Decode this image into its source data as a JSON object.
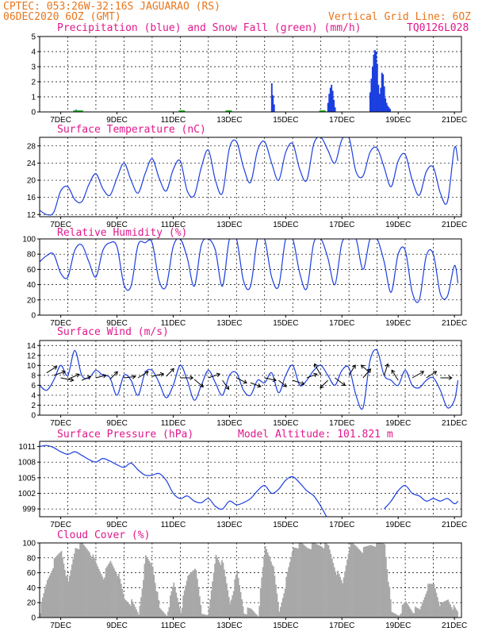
{
  "header": {
    "line1": "CPTEC:   053:26W-32:16S  JAGUARAO (RS)",
    "line2": "06DEC2020 6OZ (GMT)",
    "grid_note": "Vertical Grid Line: 6OZ",
    "model_id": "TQ0126L028"
  },
  "colors": {
    "header": "#e8761c",
    "title": "#e0188c",
    "line": "#1c3fe0",
    "precip": "#1c3fe0",
    "snow": "#22bb22",
    "cloud": "#a8a8a8",
    "wind_arrow": "#000000"
  },
  "x_axis": {
    "tick_labels": [
      "7DEC",
      "9DEC",
      "11DEC",
      "13DEC",
      "15DEC",
      "17DEC",
      "19DEC",
      "21DEC"
    ],
    "tick_hours": [
      18,
      66,
      114,
      162,
      210,
      258,
      306,
      354
    ],
    "gridline_hours": [
      0,
      24,
      48,
      72,
      96,
      120,
      144,
      168,
      192,
      216,
      240,
      264,
      288,
      312,
      336,
      360
    ],
    "range_hours": [
      0,
      360
    ]
  },
  "chart_data": [
    {
      "id": "precipitation",
      "type": "bar",
      "title": "Precipitation (blue) and Snow Fall (green) (mm/h)",
      "ylim": [
        0,
        5
      ],
      "yticks": [
        0,
        1,
        2,
        3,
        4,
        5
      ],
      "grid": true,
      "series": [
        {
          "name": "Precipitation",
          "color": "#1c3fe0",
          "points": [
            [
              30,
              0.1
            ],
            [
              31,
              0.15
            ],
            [
              32,
              0.1
            ],
            [
              33,
              0.05
            ],
            [
              34,
              0.05
            ],
            [
              198,
              1.9
            ],
            [
              199,
              1.1
            ],
            [
              200,
              0.5
            ],
            [
              246,
              0.6
            ],
            [
              247,
              1.2
            ],
            [
              248,
              1.6
            ],
            [
              249,
              1.8
            ],
            [
              250,
              1.4
            ],
            [
              251,
              0.8
            ],
            [
              252,
              0.3
            ],
            [
              282,
              1.3
            ],
            [
              283,
              2.2
            ],
            [
              284,
              3.0
            ],
            [
              285,
              3.8
            ],
            [
              286,
              4.1
            ],
            [
              287,
              4.0
            ],
            [
              288,
              3.2
            ],
            [
              289,
              1.8
            ],
            [
              290,
              1.2
            ],
            [
              291,
              1.6
            ],
            [
              292,
              2.6
            ],
            [
              293,
              2.5
            ],
            [
              294,
              1.7
            ],
            [
              295,
              0.9
            ],
            [
              296,
              0.6
            ],
            [
              297,
              0.4
            ],
            [
              298,
              0.3
            ],
            [
              299,
              0.2
            ]
          ]
        },
        {
          "name": "Snow Fall",
          "color": "#22bb22",
          "points": [
            [
              30,
              0.05
            ],
            [
              33,
              0.05
            ],
            [
              120,
              0.03
            ],
            [
              160,
              0.03
            ],
            [
              240,
              0.03
            ]
          ]
        }
      ]
    },
    {
      "id": "temperature",
      "type": "line",
      "title": "Surface Temperature (nC)",
      "ylim": [
        11.5,
        30
      ],
      "yticks": [
        12,
        16,
        20,
        24,
        28
      ],
      "grid": true,
      "x": [
        0,
        6,
        12,
        18,
        24,
        30,
        36,
        42,
        48,
        54,
        60,
        66,
        72,
        78,
        84,
        90,
        96,
        102,
        108,
        114,
        120,
        126,
        132,
        138,
        144,
        150,
        156,
        162,
        168,
        174,
        180,
        186,
        192,
        198,
        204,
        210,
        216,
        222,
        228,
        234,
        240,
        246,
        252,
        258,
        264,
        270,
        276,
        282,
        288,
        294,
        300,
        306,
        312,
        318,
        324,
        330,
        336,
        342,
        348,
        354,
        357
      ],
      "values": [
        13.0,
        12.0,
        12.5,
        17.5,
        18.5,
        15.5,
        15.0,
        19.0,
        21.5,
        18.0,
        16.5,
        20.5,
        24.0,
        20.0,
        17.0,
        21.5,
        25.0,
        20.5,
        17.5,
        22.5,
        24.5,
        17.5,
        16.5,
        23.0,
        27.0,
        20.0,
        17.0,
        27.5,
        29.0,
        23.0,
        19.5,
        27.0,
        29.0,
        24.0,
        20.0,
        26.5,
        28.5,
        22.5,
        20.0,
        28.5,
        30.0,
        27.0,
        24.0,
        29.5,
        30.0,
        22.0,
        21.0,
        26.5,
        27.5,
        23.0,
        18.5,
        24.5,
        26.0,
        20.0,
        16.5,
        22.0,
        23.0,
        17.0,
        15.0,
        27.5,
        24.5
      ]
    },
    {
      "id": "humidity",
      "type": "line",
      "title": "Relative Humidity (%)",
      "ylim": [
        0,
        100
      ],
      "yticks": [
        0,
        20,
        40,
        60,
        80,
        100
      ],
      "grid": true,
      "x": [
        0,
        6,
        12,
        18,
        24,
        30,
        36,
        42,
        48,
        54,
        60,
        66,
        72,
        78,
        84,
        90,
        96,
        102,
        108,
        114,
        120,
        126,
        132,
        138,
        144,
        150,
        156,
        162,
        168,
        174,
        180,
        186,
        192,
        198,
        204,
        210,
        216,
        222,
        228,
        234,
        240,
        246,
        252,
        258,
        264,
        270,
        276,
        282,
        288,
        294,
        300,
        306,
        312,
        318,
        324,
        330,
        336,
        342,
        348,
        354,
        357
      ],
      "values": [
        70,
        78,
        80,
        55,
        50,
        85,
        92,
        70,
        50,
        85,
        95,
        90,
        40,
        38,
        92,
        95,
        95,
        45,
        38,
        90,
        100,
        75,
        38,
        92,
        100,
        85,
        38,
        100,
        100,
        45,
        38,
        100,
        100,
        50,
        38,
        100,
        100,
        55,
        35,
        95,
        100,
        75,
        40,
        95,
        100,
        100,
        60,
        100,
        100,
        70,
        30,
        80,
        85,
        30,
        20,
        78,
        80,
        28,
        25,
        65,
        42
      ]
    },
    {
      "id": "wind",
      "type": "line",
      "title": "Surface Wind (m/s)",
      "ylim": [
        0,
        15
      ],
      "yticks": [
        0,
        2,
        4,
        6,
        8,
        10,
        12,
        14
      ],
      "grid": true,
      "x": [
        0,
        6,
        12,
        18,
        24,
        30,
        36,
        42,
        48,
        54,
        60,
        66,
        72,
        78,
        84,
        90,
        96,
        102,
        108,
        114,
        120,
        126,
        132,
        138,
        144,
        150,
        156,
        162,
        168,
        174,
        180,
        186,
        192,
        198,
        204,
        210,
        216,
        222,
        228,
        234,
        240,
        246,
        252,
        258,
        264,
        270,
        276,
        282,
        288,
        294,
        300,
        306,
        312,
        318,
        324,
        330,
        336,
        342,
        348,
        354,
        357
      ],
      "values": [
        6.0,
        5.0,
        7.0,
        10.0,
        8.0,
        13.0,
        8.0,
        7.5,
        9.0,
        8.0,
        7.5,
        4.0,
        8.0,
        7.0,
        4.0,
        8.5,
        9.0,
        6.5,
        3.5,
        6.0,
        10.0,
        7.0,
        3.0,
        6.0,
        9.0,
        6.5,
        4.0,
        8.0,
        8.5,
        5.0,
        4.0,
        7.0,
        6.5,
        8.5,
        4.5,
        8.0,
        10.0,
        6.0,
        7.0,
        9.0,
        10.0,
        8.0,
        6.0,
        9.0,
        9.5,
        4.0,
        1.5,
        11.0,
        13.0,
        8.0,
        7.0,
        6.0,
        9.0,
        6.0,
        5.5,
        7.0,
        7.5,
        5.0,
        1.5,
        3.0,
        7.0
      ],
      "vectors": [
        [
          6,
          8.5,
          0.8,
          0.5
        ],
        [
          12,
          8.0,
          0.9,
          0.3
        ],
        [
          18,
          7.5,
          1.0,
          -0.2
        ],
        [
          24,
          7.2,
          0.9,
          0.4
        ],
        [
          36,
          7.0,
          0.7,
          0.3
        ],
        [
          48,
          7.5,
          0.8,
          0.2
        ],
        [
          60,
          7.2,
          0.6,
          0.6
        ],
        [
          72,
          7.5,
          0.9,
          0.1
        ],
        [
          84,
          7.5,
          0.8,
          0.5
        ],
        [
          96,
          7.8,
          0.9,
          0.2
        ],
        [
          108,
          7.8,
          0.6,
          0.6
        ],
        [
          120,
          7.5,
          1.0,
          0.0
        ],
        [
          132,
          7.2,
          0.7,
          -0.6
        ],
        [
          144,
          7.5,
          0.9,
          0.3
        ],
        [
          156,
          7.0,
          0.5,
          -0.7
        ],
        [
          168,
          7.5,
          0.8,
          -0.4
        ],
        [
          180,
          6.5,
          0.8,
          -0.3
        ],
        [
          192,
          7.5,
          0.9,
          -0.2
        ],
        [
          204,
          7.0,
          0.6,
          -0.5
        ],
        [
          216,
          7.0,
          0.9,
          -0.3
        ],
        [
          228,
          7.5,
          0.8,
          0.3
        ],
        [
          240,
          8.0,
          -0.5,
          0.9
        ],
        [
          246,
          7.0,
          -0.6,
          -0.6
        ],
        [
          252,
          7.5,
          0.8,
          -0.6
        ],
        [
          264,
          8.0,
          0.5,
          0.8
        ],
        [
          276,
          7.5,
          0.6,
          0.7
        ],
        [
          282,
          8.5,
          -0.7,
          0.6
        ],
        [
          294,
          8.0,
          0.3,
          0.9
        ],
        [
          306,
          7.0,
          -0.5,
          0.8
        ],
        [
          318,
          7.5,
          0.9,
          0.5
        ],
        [
          330,
          7.5,
          0.8,
          0.5
        ],
        [
          342,
          7.5,
          0.9,
          0.0
        ]
      ]
    },
    {
      "id": "pressure",
      "type": "line",
      "title": "Surface Pressure (hPa)",
      "ylim": [
        997.5,
        1012.0
      ],
      "yticks": [
        999,
        1002,
        1005,
        1008,
        1011
      ],
      "grid": true,
      "x": [
        0,
        6,
        12,
        18,
        24,
        30,
        36,
        42,
        48,
        54,
        60,
        66,
        72,
        78,
        84,
        90,
        96,
        102,
        108,
        114,
        120,
        126,
        132,
        138,
        144,
        150,
        156,
        162,
        168,
        174,
        180,
        186,
        192,
        198,
        204,
        210,
        216,
        222,
        228,
        234,
        240,
        246,
        252,
        258,
        264,
        270,
        276,
        282,
        288,
        294,
        300,
        306,
        312,
        318,
        324,
        330,
        336,
        342,
        348,
        354,
        357
      ],
      "values": [
        1011.0,
        1011.2,
        1010.8,
        1010.0,
        1009.5,
        1010.0,
        1009.3,
        1008.5,
        1008.0,
        1008.7,
        1008.2,
        1007.5,
        1007.0,
        1007.8,
        1006.5,
        1005.5,
        1005.5,
        1005.8,
        1004.5,
        1002.0,
        1001.0,
        1001.5,
        1000.5,
        1000.2,
        1001.0,
        999.5,
        999.0,
        1000.5,
        999.8,
        1000.2,
        1001.0,
        1002.5,
        1003.5,
        1002.0,
        1002.8,
        1004.5,
        1005.2,
        1004.0,
        1002.5,
        1001.5,
        999.5,
        997.0,
        null,
        null,
        null,
        null,
        null,
        null,
        null,
        999.0,
        1000.5,
        1002.5,
        1003.5,
        1002.0,
        1001.5,
        1000.5,
        1001.0,
        1000.5,
        1001.0,
        1000.0,
        1000.5
      ]
    },
    {
      "id": "cloud",
      "type": "bar",
      "title": "Cloud Cover (%)",
      "ylim": [
        0,
        100
      ],
      "yticks": [
        0,
        20,
        40,
        60,
        80,
        100
      ],
      "grid": true,
      "x": [
        0,
        6,
        12,
        18,
        24,
        30,
        36,
        42,
        48,
        54,
        60,
        66,
        72,
        78,
        84,
        90,
        96,
        102,
        108,
        114,
        120,
        126,
        132,
        138,
        144,
        150,
        156,
        162,
        168,
        174,
        180,
        186,
        192,
        198,
        204,
        210,
        216,
        222,
        228,
        234,
        240,
        246,
        252,
        258,
        264,
        270,
        276,
        282,
        288,
        294,
        300,
        306,
        312,
        318,
        324,
        330,
        336,
        342,
        348,
        354,
        357
      ],
      "values": [
        10,
        50,
        75,
        90,
        45,
        95,
        97,
        90,
        70,
        55,
        75,
        60,
        25,
        20,
        5,
        80,
        70,
        10,
        5,
        45,
        10,
        55,
        70,
        5,
        8,
        85,
        70,
        20,
        60,
        8,
        10,
        5,
        95,
        75,
        8,
        50,
        95,
        98,
        95,
        97,
        98,
        95,
        65,
        45,
        98,
        95,
        90,
        98,
        100,
        100,
        5,
        5,
        20,
        10,
        10,
        40,
        45,
        15,
        25,
        10,
        5
      ]
    },
    {
      "id": "altitude",
      "type": "table",
      "title": "Model Altitude: 101.821 m"
    }
  ]
}
